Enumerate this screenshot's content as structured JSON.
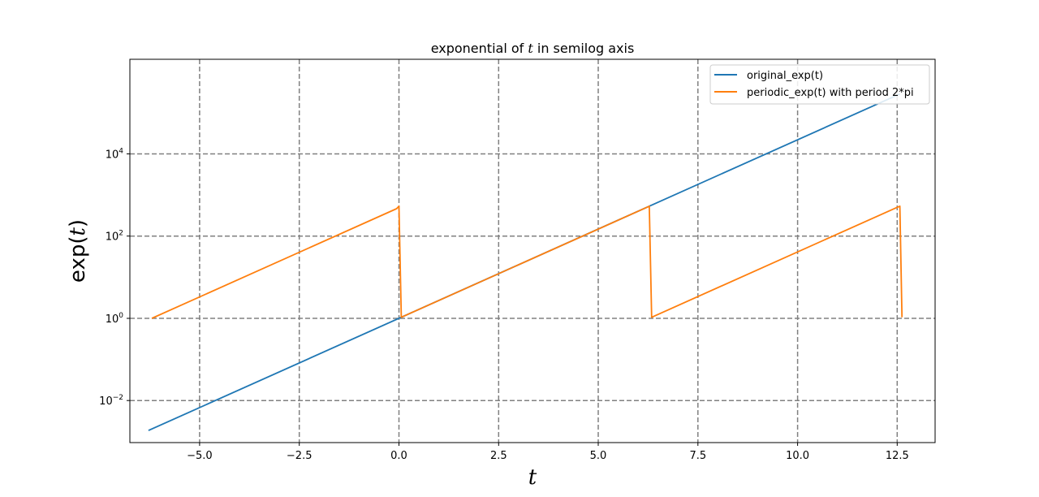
{
  "chart_data": {
    "type": "line",
    "title": "exponential of t in semilog axis",
    "xlabel": "t",
    "ylabel": "exp(t)",
    "yscale": "log",
    "xlim": [
      -6.75,
      13.45
    ],
    "ylim": [
      0.00095,
      2000000
    ],
    "grid": true,
    "legend_position": "top-right",
    "x_ticks": [
      -5.0,
      -2.5,
      0.0,
      2.5,
      5.0,
      7.5,
      10.0,
      12.5
    ],
    "x_tick_labels": [
      "−5.0",
      "−2.5",
      "0.0",
      "2.5",
      "5.0",
      "7.5",
      "10.0",
      "12.5"
    ],
    "y_ticks": [
      0.01,
      1,
      100,
      10000
    ],
    "y_tick_labels": [
      {
        "base": "10",
        "exp": "−2"
      },
      {
        "base": "10",
        "exp": "0"
      },
      {
        "base": "10",
        "exp": "2"
      },
      {
        "base": "10",
        "exp": "4"
      }
    ],
    "series": [
      {
        "name": "original_exp(t)",
        "color": "#1f77b4",
        "x": [
          -6.283,
          12.566
        ],
        "y": [
          0.00187,
          286751
        ]
      },
      {
        "name": "periodic_exp(t) with period 2*pi",
        "color": "#ff7f0e",
        "x": [
          -6.2,
          -0.06,
          0.0,
          0.06,
          6.22,
          6.28,
          6.34,
          12.5,
          12.566,
          12.62
        ],
        "y": [
          1,
          464,
          535,
          1.06,
          502,
          535,
          1.06,
          502,
          535,
          1.06
        ]
      }
    ]
  }
}
